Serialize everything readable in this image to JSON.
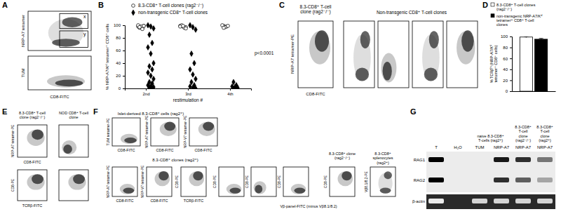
{
  "chart_data": [
    {
      "type": "scatter",
      "x_label": "restimulation #",
      "y_label": "% NRP-A7/Kᵈ tetramer⁺ CD8⁺ cells",
      "categories": [
        "2nd",
        "3rd",
        "4th"
      ],
      "ylim": [
        0,
        100
      ],
      "yticks": [
        0,
        20,
        40,
        60,
        80,
        100
      ],
      "legend": "top",
      "annotations": [
        "p<0.0001"
      ],
      "series": [
        {
          "name": "8.3-CD8⁺ T-cell clones (rag2⁻/⁻)",
          "marker": "circle",
          "color": "#ffffff",
          "x": [
            "2nd",
            "2nd",
            "2nd",
            "2nd",
            "2nd",
            "2nd",
            "2nd",
            "2nd",
            "2nd",
            "2nd",
            "3rd",
            "3rd",
            "3rd",
            "3rd",
            "3rd",
            "3rd",
            "3rd",
            "3rd",
            "4th",
            "4th",
            "4th",
            "4th",
            "4th",
            "4th"
          ],
          "values": [
            98,
            97,
            99,
            96,
            95,
            100,
            98,
            99,
            97,
            94,
            99,
            98,
            97,
            100,
            96,
            98,
            99,
            95,
            99,
            98,
            100,
            97,
            99,
            96
          ]
        },
        {
          "name": "non-transgenic CD8⁺ T-cell clones",
          "marker": "diamond",
          "color": "#000000",
          "x": [
            "2nd",
            "2nd",
            "2nd",
            "2nd",
            "2nd",
            "2nd",
            "2nd",
            "2nd",
            "2nd",
            "2nd",
            "2nd",
            "2nd",
            "2nd",
            "2nd",
            "2nd",
            "2nd",
            "2nd",
            "2nd",
            "2nd",
            "2nd",
            "3rd",
            "3rd",
            "3rd",
            "3rd",
            "3rd",
            "3rd",
            "3rd",
            "3rd",
            "3rd",
            "3rd",
            "3rd",
            "3rd",
            "3rd",
            "4th",
            "4th",
            "4th",
            "4th",
            "4th",
            "4th",
            "4th"
          ],
          "values": [
            100,
            98,
            95,
            85,
            72,
            65,
            55,
            40,
            35,
            30,
            25,
            20,
            15,
            10,
            8,
            5,
            3,
            2,
            1,
            0,
            100,
            97,
            93,
            55,
            40,
            30,
            22,
            15,
            10,
            5,
            3,
            1,
            0,
            10,
            5,
            3,
            2,
            1,
            0,
            0
          ]
        }
      ]
    },
    {
      "type": "bar",
      "y_label": "% TCRβʰⁱ (NRP-A7/Kᵈ tetramer⁺ CD8⁺ cells)",
      "categories": [
        null
      ],
      "ylim": [
        0,
        100
      ],
      "yticks": [
        0,
        20,
        40,
        60,
        80,
        100
      ],
      "legend": "top",
      "series": [
        {
          "name": "8.3-CD8⁺ T-cell clones (rag2⁻/⁻)",
          "color": "#ffffff",
          "values": [
            99
          ],
          "errors": [
            1
          ]
        },
        {
          "name": "non-transgenic NRP-A7/Kᵈ tetramer⁺ CD8⁺ T-cell clones",
          "color": "#000000",
          "values": [
            95
          ],
          "errors": [
            1.5
          ]
        }
      ]
    }
  ],
  "figure": {
    "panel_labels": [
      "A",
      "B",
      "C",
      "D",
      "E",
      "F",
      "G"
    ],
    "A": {
      "x_label": "CD8-FITC",
      "plots": [
        {
          "y_label": "NRP-A7 tetramer",
          "gates": [
            "x",
            "y"
          ]
        },
        {
          "y_label": "TUM"
        }
      ]
    },
    "C": {
      "header_clone": "8.3-CD8⁺ T-cell clone (rag2⁻/⁻)",
      "header_nontg": "Non-transgenic CD8⁺ T-cell clones",
      "y_label": "NRP-A7 tetramer-PE",
      "x_label": "CD8-FITC",
      "plots": 5
    },
    "E": {
      "headers": [
        "8.3-CD8⁺ T-cell clone (rag2⁻/⁻)",
        "NOD CD8⁺ T-cell clone"
      ],
      "rows": [
        {
          "y_label": "NRP-A7 tetramer-PE",
          "x_label": "CD8-FITC"
        },
        {
          "y_label": "CD8-PE",
          "x_label": "TCRβ-FITC"
        }
      ]
    },
    "F": {
      "top_header": "Islet-derived 8.3-CD8⁺ cells (rag2⁺)",
      "top_plots": [
        {
          "y_label": "TUM tetramer-PE",
          "x_label": "CD8-FITC"
        },
        {
          "y_label": "NRP-A7 tetramer-PE",
          "x_label": "CD8-FITC"
        },
        {
          "y_label": "NRP-V7 tetramer-PE",
          "x_label": "CD8-FITC"
        }
      ],
      "bottom_header": "8.3-CD8⁺ clones (rag2⁺)",
      "bottom_plots": [
        {
          "y_label": "NRP-A7 tetramer-PE",
          "x_label": "CD8-FITC"
        },
        {
          "y_label": "NRP-V7 tetramer-PE",
          "x_label": "CD8-FITC"
        },
        {
          "y_label": "CD8-PE",
          "x_label": "TCRβ-FITC"
        },
        {
          "y_label": "CD8-PE"
        },
        {
          "y_label": "CD8-PE"
        },
        {
          "y_label": "CD8-PE"
        },
        {
          "y_label": "CD8-PE",
          "header": "8.3-CD8⁺ clone (rag2⁻/⁻)"
        },
        {
          "y_label": "Vβ8.1/8.2-PE",
          "header": "8.3-CD8⁺ splenocytes (rag2⁺)"
        }
      ],
      "shared_x_label": "Vβ-panel-FITC (minus Vβ8.1/8.2)"
    },
    "G": {
      "groups": [
        {
          "label": "naive 8.3-CD8⁺ T-cells (rag2⁺)",
          "lanes": [
            2,
            3
          ]
        },
        {
          "label": "8.3-CD8⁺ T-cell clone (rag2⁻/⁻)",
          "lanes": [
            4
          ]
        },
        {
          "label": "8.3-CD8⁺ T-cell clone (rag2⁺)",
          "lanes": [
            5
          ]
        }
      ],
      "lanes": [
        "T",
        "H₂O",
        "TUM",
        "NRP-A7",
        "NRP-A7",
        "NRP-A7"
      ],
      "rows": [
        "RAG1",
        "RAG2",
        "β-actin"
      ],
      "bands": [
        [
          1,
          0,
          0,
          0.9,
          0.8,
          0.5
        ],
        [
          1,
          0,
          0,
          0.8,
          0.6,
          0.3
        ],
        [
          0.9,
          0,
          0.8,
          0.8,
          0.8,
          0.8
        ]
      ]
    }
  }
}
